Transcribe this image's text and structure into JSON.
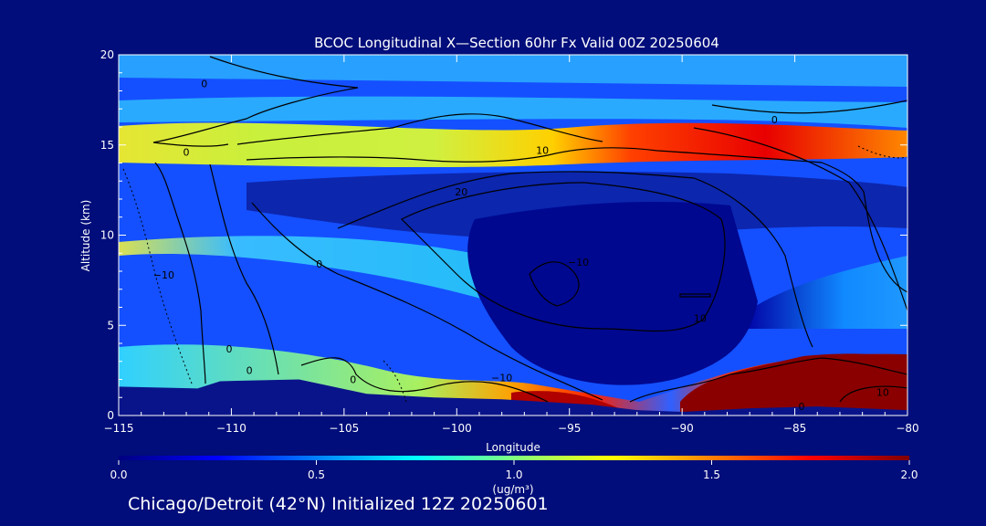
{
  "chart_data": {
    "type": "heatmap",
    "title": "BCOC Longitudinal X—Section 60hr  Fx Valid 00Z 20250604",
    "xlabel": "Longitude",
    "ylabel": "Altitude (km)",
    "xlim": [
      -115,
      -80
    ],
    "ylim": [
      0,
      20
    ],
    "x_ticks": [
      -115,
      -110,
      -105,
      -100,
      -95,
      -90,
      -85,
      -80
    ],
    "x_tick_labels": [
      "−115",
      "−110",
      "−105",
      "−100",
      "−95",
      "−90",
      "−85",
      "−80"
    ],
    "y_ticks": [
      0,
      5,
      10,
      15,
      20
    ],
    "y_tick_labels": [
      "0",
      "5",
      "10",
      "15",
      "20"
    ],
    "colorbar": {
      "min": 0.0,
      "max": 2.0,
      "ticks": [
        0.0,
        0.5,
        1.0,
        1.5,
        2.0
      ],
      "tick_labels": [
        "0.0",
        "0.5",
        "1.0",
        "1.5",
        "2.0"
      ],
      "unit_label": "(ug/m³)",
      "colors": [
        "#000080",
        "#0000ff",
        "#0080ff",
        "#00ffff",
        "#80ff80",
        "#ffff00",
        "#ff8000",
        "#ff0000",
        "#800000"
      ]
    },
    "field_description_lon": [
      -115,
      -110,
      -105,
      -100,
      -95,
      -90,
      -85,
      -80
    ],
    "bands": [
      {
        "alt_km": 15.0,
        "lon": [
          -115,
          -110,
          -105,
          -100,
          -95,
          -90,
          -85,
          -80
        ],
        "values": [
          1.05,
          0.95,
          0.95,
          1.05,
          1.2,
          1.75,
          1.85,
          1.45
        ]
      },
      {
        "alt_km": 6.0,
        "lon": [
          -115,
          -110,
          -105,
          -100,
          -95,
          -90,
          -85,
          -80
        ],
        "values": [
          0.85,
          0.7,
          0.65,
          0.55,
          0.3,
          0.15,
          0.35,
          0.4
        ]
      },
      {
        "alt_km": 1.0,
        "lon": [
          -115,
          -110,
          -105,
          -100,
          -95,
          -90,
          -85,
          -80
        ],
        "values": [
          0.0,
          0.0,
          0.0,
          1.2,
          1.9,
          0.4,
          2.0,
          2.0
        ]
      }
    ],
    "terrain_km": {
      "lon": [
        -115,
        -111.5,
        -110.5,
        -107,
        -105.5,
        -104,
        -101,
        -98,
        -94,
        -92,
        -90,
        -87,
        -84,
        -80
      ],
      "alt": [
        1.6,
        1.5,
        1.9,
        2.0,
        1.6,
        1.2,
        1.0,
        0.9,
        0.6,
        0.3,
        0.2,
        0.4,
        0.5,
        0.3
      ]
    },
    "contour_labels": [
      {
        "text": "0",
        "lon": -111.2,
        "alt": 18.4
      },
      {
        "text": "0",
        "lon": -112.0,
        "alt": 14.6
      },
      {
        "text": "0",
        "lon": -85.9,
        "alt": 16.4
      },
      {
        "text": "10",
        "lon": -96.2,
        "alt": 14.7
      },
      {
        "text": "20",
        "lon": -99.8,
        "alt": 12.4
      },
      {
        "text": "−10",
        "lon": -94.6,
        "alt": 8.5
      },
      {
        "text": "10",
        "lon": -89.2,
        "alt": 5.4
      },
      {
        "text": "−10",
        "lon": -113.0,
        "alt": 7.8
      },
      {
        "text": "0",
        "lon": -106.1,
        "alt": 8.4
      },
      {
        "text": "0",
        "lon": -110.1,
        "alt": 3.7
      },
      {
        "text": "0",
        "lon": -109.2,
        "alt": 2.5
      },
      {
        "text": "0",
        "lon": -104.6,
        "alt": 2.0
      },
      {
        "text": "−10",
        "lon": -98.0,
        "alt": 2.1
      },
      {
        "text": "0",
        "lon": -84.7,
        "alt": 0.5
      },
      {
        "text": "10",
        "lon": -81.1,
        "alt": 1.3
      }
    ]
  },
  "subtitle": "Chicago/Detroit (42°N) Initialized 12Z 20250601"
}
